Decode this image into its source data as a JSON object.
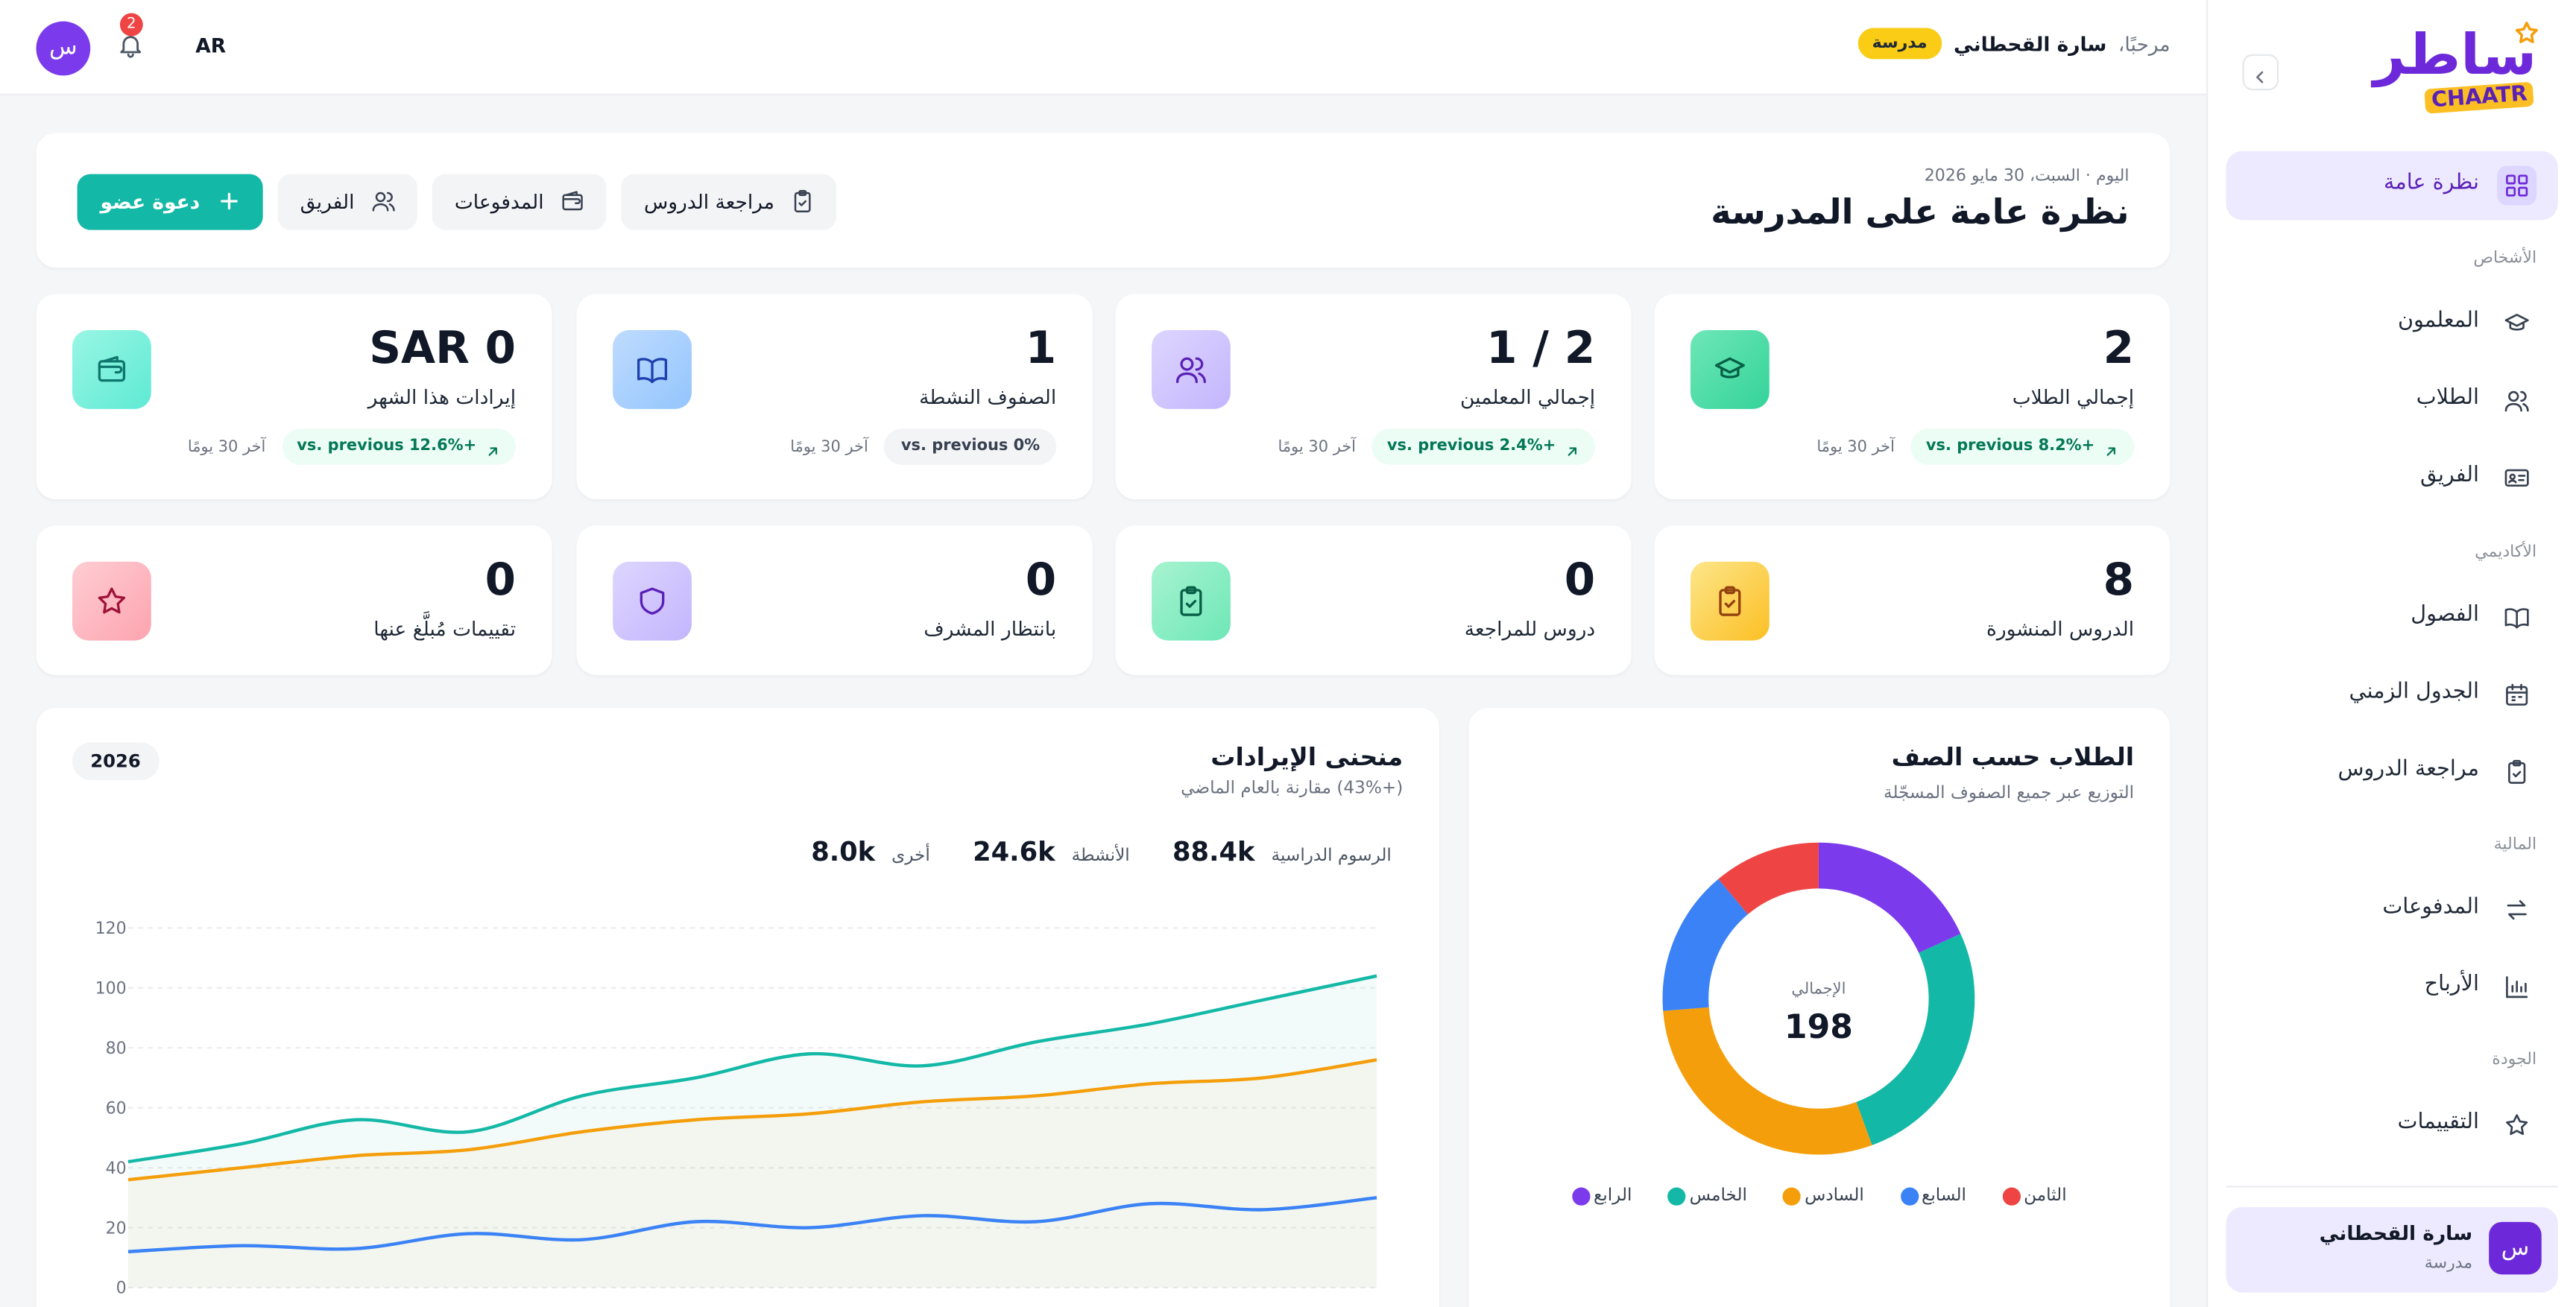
{
  "sidebar": {
    "logo": "ساطر",
    "logo_latin": "CHAATR",
    "items": [
      {
        "label": "نظرة عامة",
        "active": true
      },
      {
        "section": "الأشخاص"
      },
      {
        "label": "المعلمون"
      },
      {
        "label": "الطلاب"
      },
      {
        "label": "الفريق"
      },
      {
        "section": "الأكاديمي"
      },
      {
        "label": "الفصول"
      },
      {
        "label": "الجدول الزمني"
      },
      {
        "label": "مراجعة الدروس"
      },
      {
        "section": "المالية"
      },
      {
        "label": "المدفوعات"
      },
      {
        "label": "الأرباح"
      },
      {
        "section": "الجودة"
      },
      {
        "label": "التقييمات"
      }
    ],
    "user": {
      "avatar": "س",
      "name": "سارة القحطاني",
      "role": "مدرسة"
    }
  },
  "topbar": {
    "avatar": "س",
    "notifications": 2,
    "language": "AR",
    "greeting": "مرحبًا،",
    "name": "سارة القحطاني",
    "role": "مدرسة"
  },
  "header": {
    "date": "اليوم · السبت، 30 مايو 2026",
    "title": "نظرة عامة على المدرسة",
    "actions": [
      "دعوة عضو",
      "الفريق",
      "المدفوعات",
      "مراجعة الدروس"
    ]
  },
  "stats": [
    {
      "value": "2",
      "label": "إجمالي الطلاب",
      "change": "vs. previous 8.2%+",
      "period": "آخر 30 يومًا"
    },
    {
      "value": "1 / 2",
      "label": "إجمالي المعلمين",
      "change": "vs. previous 2.4%+",
      "period": "آخر 30 يومًا"
    },
    {
      "value": "1",
      "label": "الصفوف النشطة",
      "change": "vs. previous 0%",
      "period": "آخر 30 يومًا"
    },
    {
      "value": "SAR 0",
      "label": "إيرادات هذا الشهر",
      "change": "vs. previous 12.6%+",
      "period": "آخر 30 يومًا"
    }
  ],
  "quick_stats": [
    {
      "value": "8",
      "label": "الدروس المنشورة"
    },
    {
      "value": "0",
      "label": "دروس للمراجعة"
    },
    {
      "value": "0",
      "label": "بانتظار المشرف"
    },
    {
      "value": "0",
      "label": "تقييمات مُبلَّغ عنها"
    }
  ],
  "chart_data": [
    {
      "type": "line",
      "title": "منحنى الإيرادات",
      "subtitle": "(+43%) مقارنة بالعام الماضي",
      "badge": "2026",
      "categories": [
        null,
        null,
        null,
        null,
        null,
        null,
        null,
        null,
        null,
        null,
        null,
        null
      ],
      "series": [
        {
          "name": "الرسوم الدراسية",
          "total": "88.4k",
          "color": "#14b8a6",
          "area": true,
          "values": [
            42,
            48,
            56,
            52,
            64,
            70,
            78,
            74,
            82,
            88,
            96,
            104
          ]
        },
        {
          "name": "الأنشطة",
          "total": "24.6k",
          "color": "#f59e0b",
          "area": true,
          "values": [
            36,
            40,
            44,
            46,
            52,
            56,
            58,
            62,
            64,
            68,
            70,
            76
          ]
        },
        {
          "name": "أخرى",
          "total": "8.0k",
          "color": "#3b82f6",
          "area": false,
          "values": [
            12,
            14,
            13,
            18,
            16,
            22,
            20,
            24,
            22,
            28,
            26,
            30
          ]
        }
      ],
      "ylim": [
        0,
        120
      ],
      "yticks": [
        0,
        20,
        40,
        60,
        80,
        100,
        120
      ],
      "grid": true
    },
    {
      "type": "pie",
      "title": "الطلاب حسب الصف",
      "subtitle": "التوزيع عبر جميع الصفوف المسجّلة",
      "center_label": "الإجمالي",
      "center_value": 198,
      "categories": [
        "الرابع",
        "الخامس",
        "السادس",
        "السابع",
        "الثامن"
      ],
      "values": [
        36,
        52,
        58,
        30,
        22
      ],
      "colors": [
        "#7c3aed",
        "#14b8a6",
        "#f59e0b",
        "#3b82f6",
        "#ef4444"
      ]
    }
  ]
}
